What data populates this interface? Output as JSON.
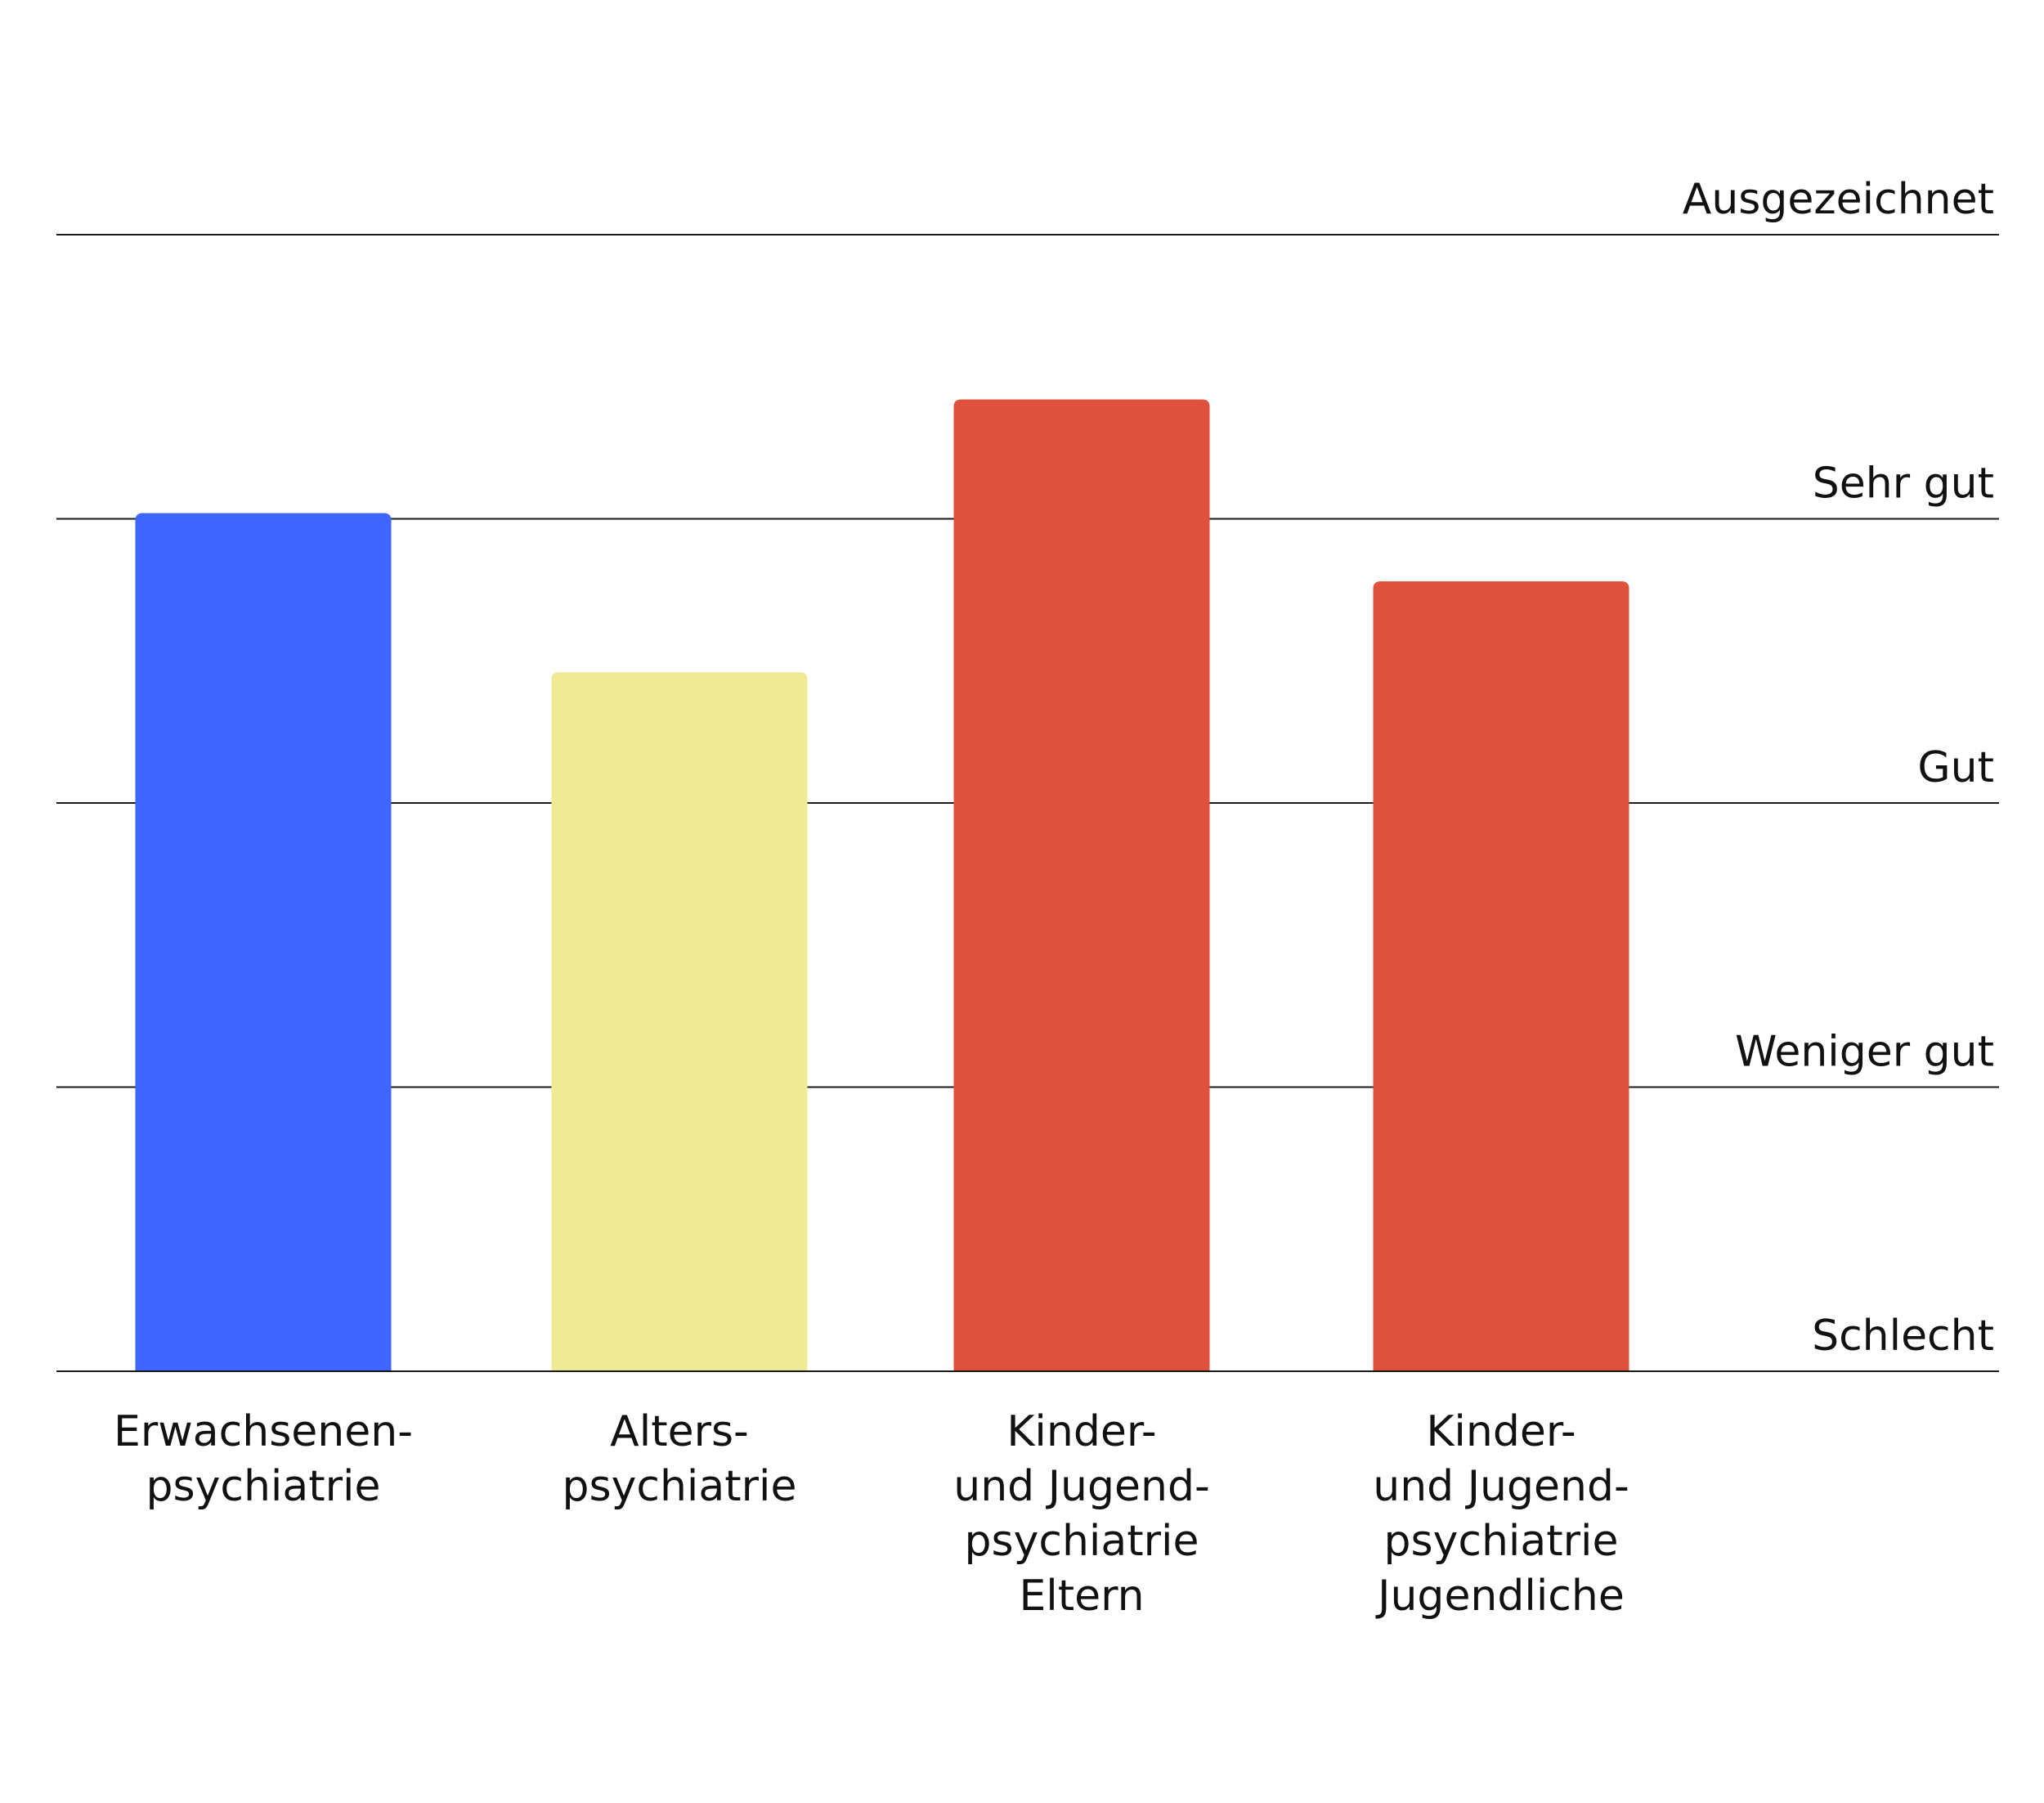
{
  "chart_data": {
    "type": "bar",
    "levels": [
      "Schlecht",
      "Weniger gut",
      "Gut",
      "Sehr gut",
      "Ausgezeichnet"
    ],
    "ylim": [
      0,
      4
    ],
    "grid": true,
    "categories": [
      [
        "Erwachsenen-",
        "psychiatrie"
      ],
      [
        "Alters-",
        "psychiatrie"
      ],
      [
        "Kinder-",
        "und Jugend-",
        "psychiatrie",
        "Eltern"
      ],
      [
        "Kinder-",
        "und Jugend-",
        "psychiatrie",
        "Jugendliche"
      ]
    ],
    "values": [
      3.02,
      2.46,
      3.42,
      2.78
    ],
    "colors": [
      "#3F66FF",
      "#EFEA96",
      "#DD513D",
      "#DD513D"
    ]
  }
}
